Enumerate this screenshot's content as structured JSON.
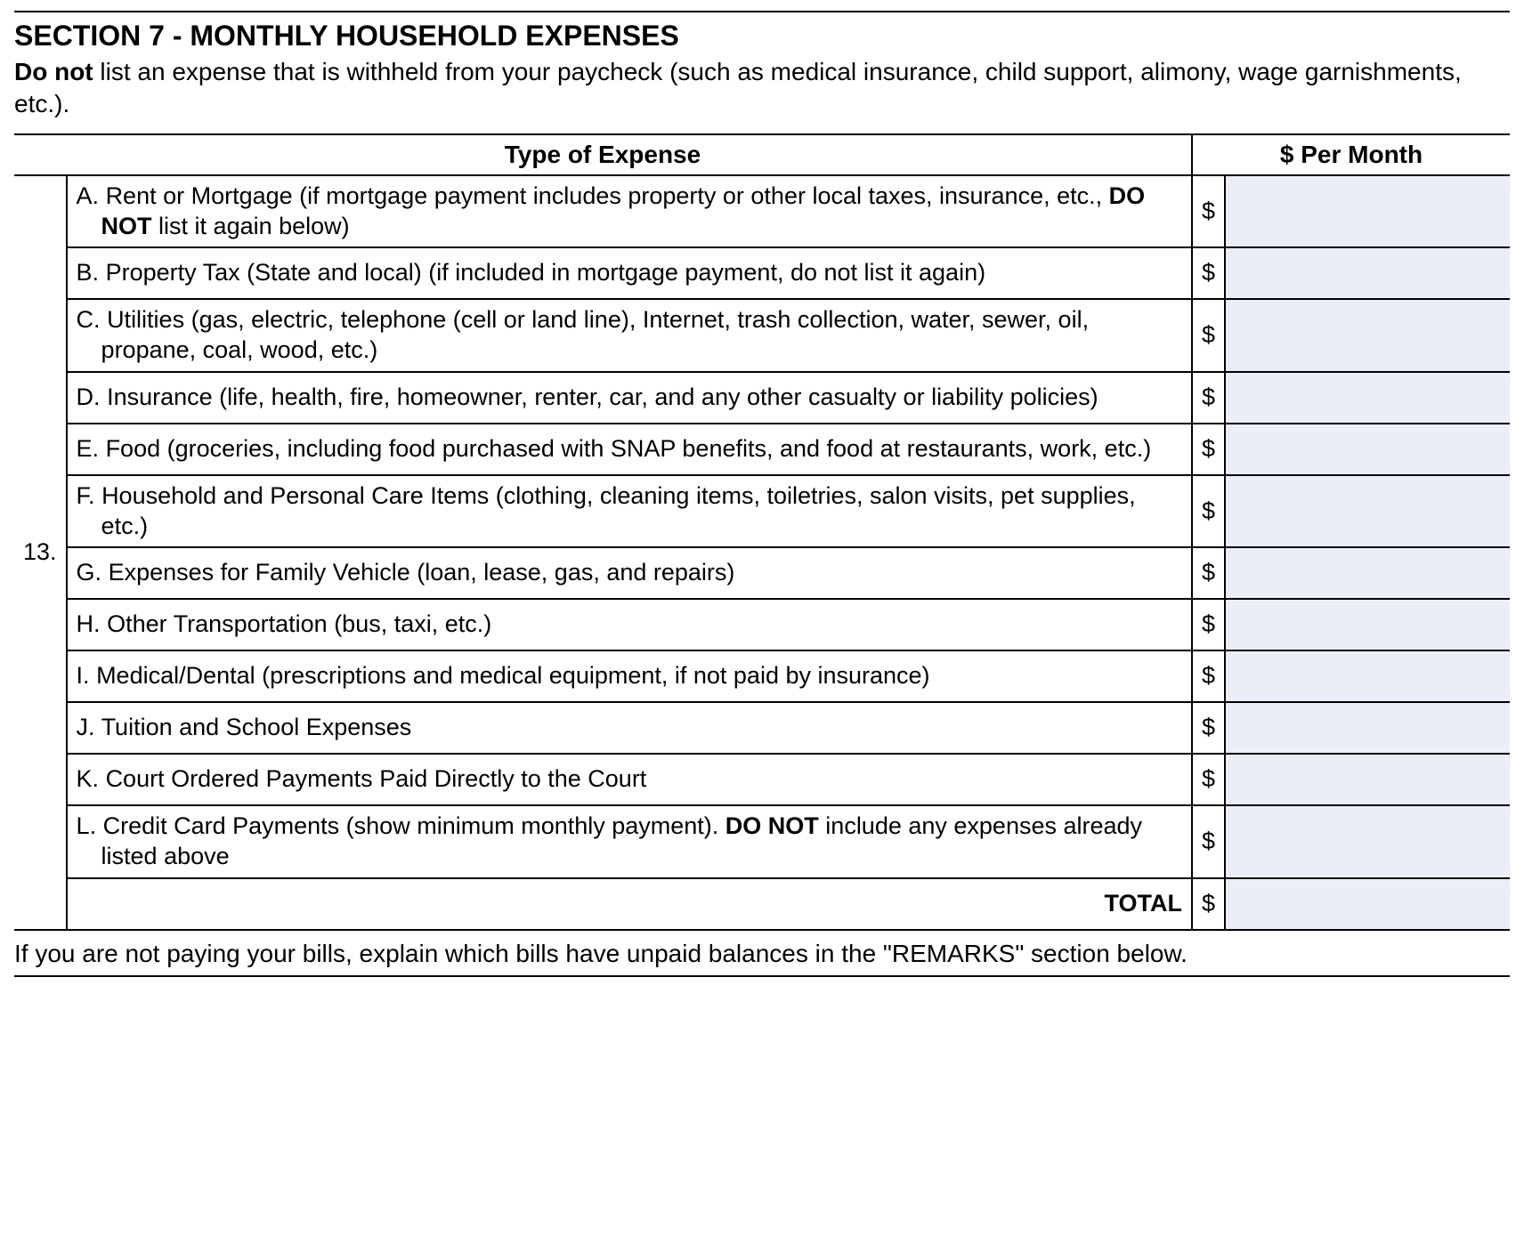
{
  "section": {
    "title": "SECTION 7 - MONTHLY HOUSEHOLD EXPENSES",
    "instructions_bold": "Do not",
    "instructions_rest": " list an expense that is withheld from your paycheck (such as medical insurance, child support, alimony, wage garnishments, etc.)."
  },
  "table": {
    "header_type": "Type of Expense",
    "header_amount": "$ Per Month",
    "item_number": "13.",
    "dollar_sign": "$",
    "rows": [
      {
        "letter": "A.",
        "text": "Rent or Mortgage (if mortgage payment includes property or other local taxes, insurance, etc., ",
        "bold": "DO NOT",
        "text2": " list it again below)"
      },
      {
        "letter": "B.",
        "text": "Property Tax (State and local) (if included in mortgage payment, do not list it again)"
      },
      {
        "letter": "C.",
        "text": "Utilities (gas, electric, telephone (cell or land line), Internet, trash collection, water, sewer, oil, propane, coal, wood, etc.)"
      },
      {
        "letter": "D.",
        "text": "Insurance (life, health, fire, homeowner, renter, car, and any other casualty or liability policies)"
      },
      {
        "letter": "E.",
        "text": "Food (groceries, including food purchased with SNAP benefits, and food at restaurants, work, etc.)"
      },
      {
        "letter": "F.",
        "text": "Household and Personal Care Items (clothing, cleaning items, toiletries, salon visits, pet supplies, etc.)"
      },
      {
        "letter": "G.",
        "text": "Expenses for Family Vehicle (loan, lease, gas, and repairs)"
      },
      {
        "letter": "H.",
        "text": "Other Transportation (bus, taxi, etc.)"
      },
      {
        "letter": "I.",
        "text": "Medical/Dental (prescriptions and medical equipment, if not paid by insurance)"
      },
      {
        "letter": "J.",
        "text": "Tuition and School Expenses"
      },
      {
        "letter": "K.",
        "text": "Court Ordered Payments Paid Directly to the Court"
      },
      {
        "letter": "L.",
        "text": "Credit Card Payments (show minimum monthly payment). ",
        "bold": "DO NOT",
        "text2": " include any expenses already listed above"
      }
    ],
    "total_label": "TOTAL"
  },
  "footer_note": "If you are not paying your bills, explain which bills have unpaid balances in the \"REMARKS\" section below.",
  "colors": {
    "input_bg": "#ebeef7",
    "border": "#000000",
    "text": "#000000",
    "background": "#ffffff"
  }
}
